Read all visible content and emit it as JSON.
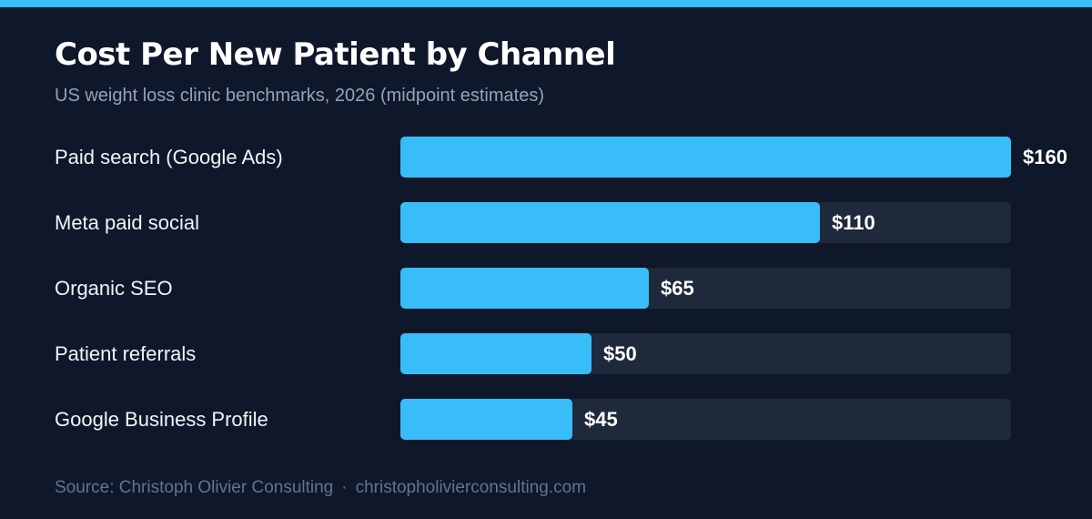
{
  "chart_data": {
    "type": "bar",
    "orientation": "horizontal",
    "title": "Cost Per New Patient by Channel",
    "subtitle": "US weight loss clinic benchmarks, 2026 (midpoint estimates)",
    "categories": [
      "Paid search (Google Ads)",
      "Meta paid social",
      "Organic SEO",
      "Patient referrals",
      "Google Business Profile"
    ],
    "values": [
      160,
      110,
      65,
      50,
      45
    ],
    "value_labels": [
      "$160",
      "$110",
      "$65",
      "$50",
      "$45"
    ],
    "xlim": [
      0,
      160
    ],
    "grid": false,
    "legend": "none"
  },
  "colors": {
    "background": "#0f172a",
    "accent": "#38bdf8",
    "track": "#1e293b",
    "title": "#ffffff",
    "subtitle": "#94a3b8",
    "footer": "#64748b"
  },
  "footer": {
    "source": "Source: Christoph Olivier Consulting",
    "separator": "·",
    "url": "christopholivierconsulting.com"
  }
}
